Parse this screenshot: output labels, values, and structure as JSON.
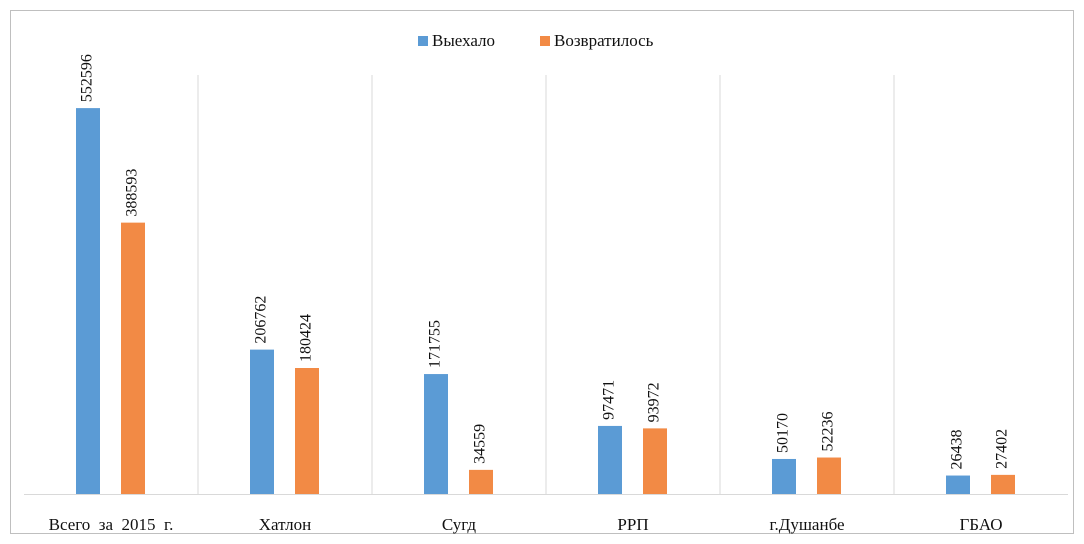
{
  "chart_data": {
    "type": "bar",
    "categories": [
      "Всего  за  2015  г.",
      "Хатлон",
      "Сугд",
      "РРП",
      "г.Душанбе",
      "ГБАО"
    ],
    "series": [
      {
        "name": "Выехало",
        "color": "#5b9bd5",
        "values": [
          552596,
          206762,
          171755,
          97471,
          50170,
          26438
        ]
      },
      {
        "name": "Возвратилось",
        "color": "#f28a45",
        "values": [
          388593,
          180424,
          34559,
          93972,
          52236,
          27402
        ]
      }
    ],
    "ylim": [
      0,
      600000
    ],
    "legend": "top"
  }
}
